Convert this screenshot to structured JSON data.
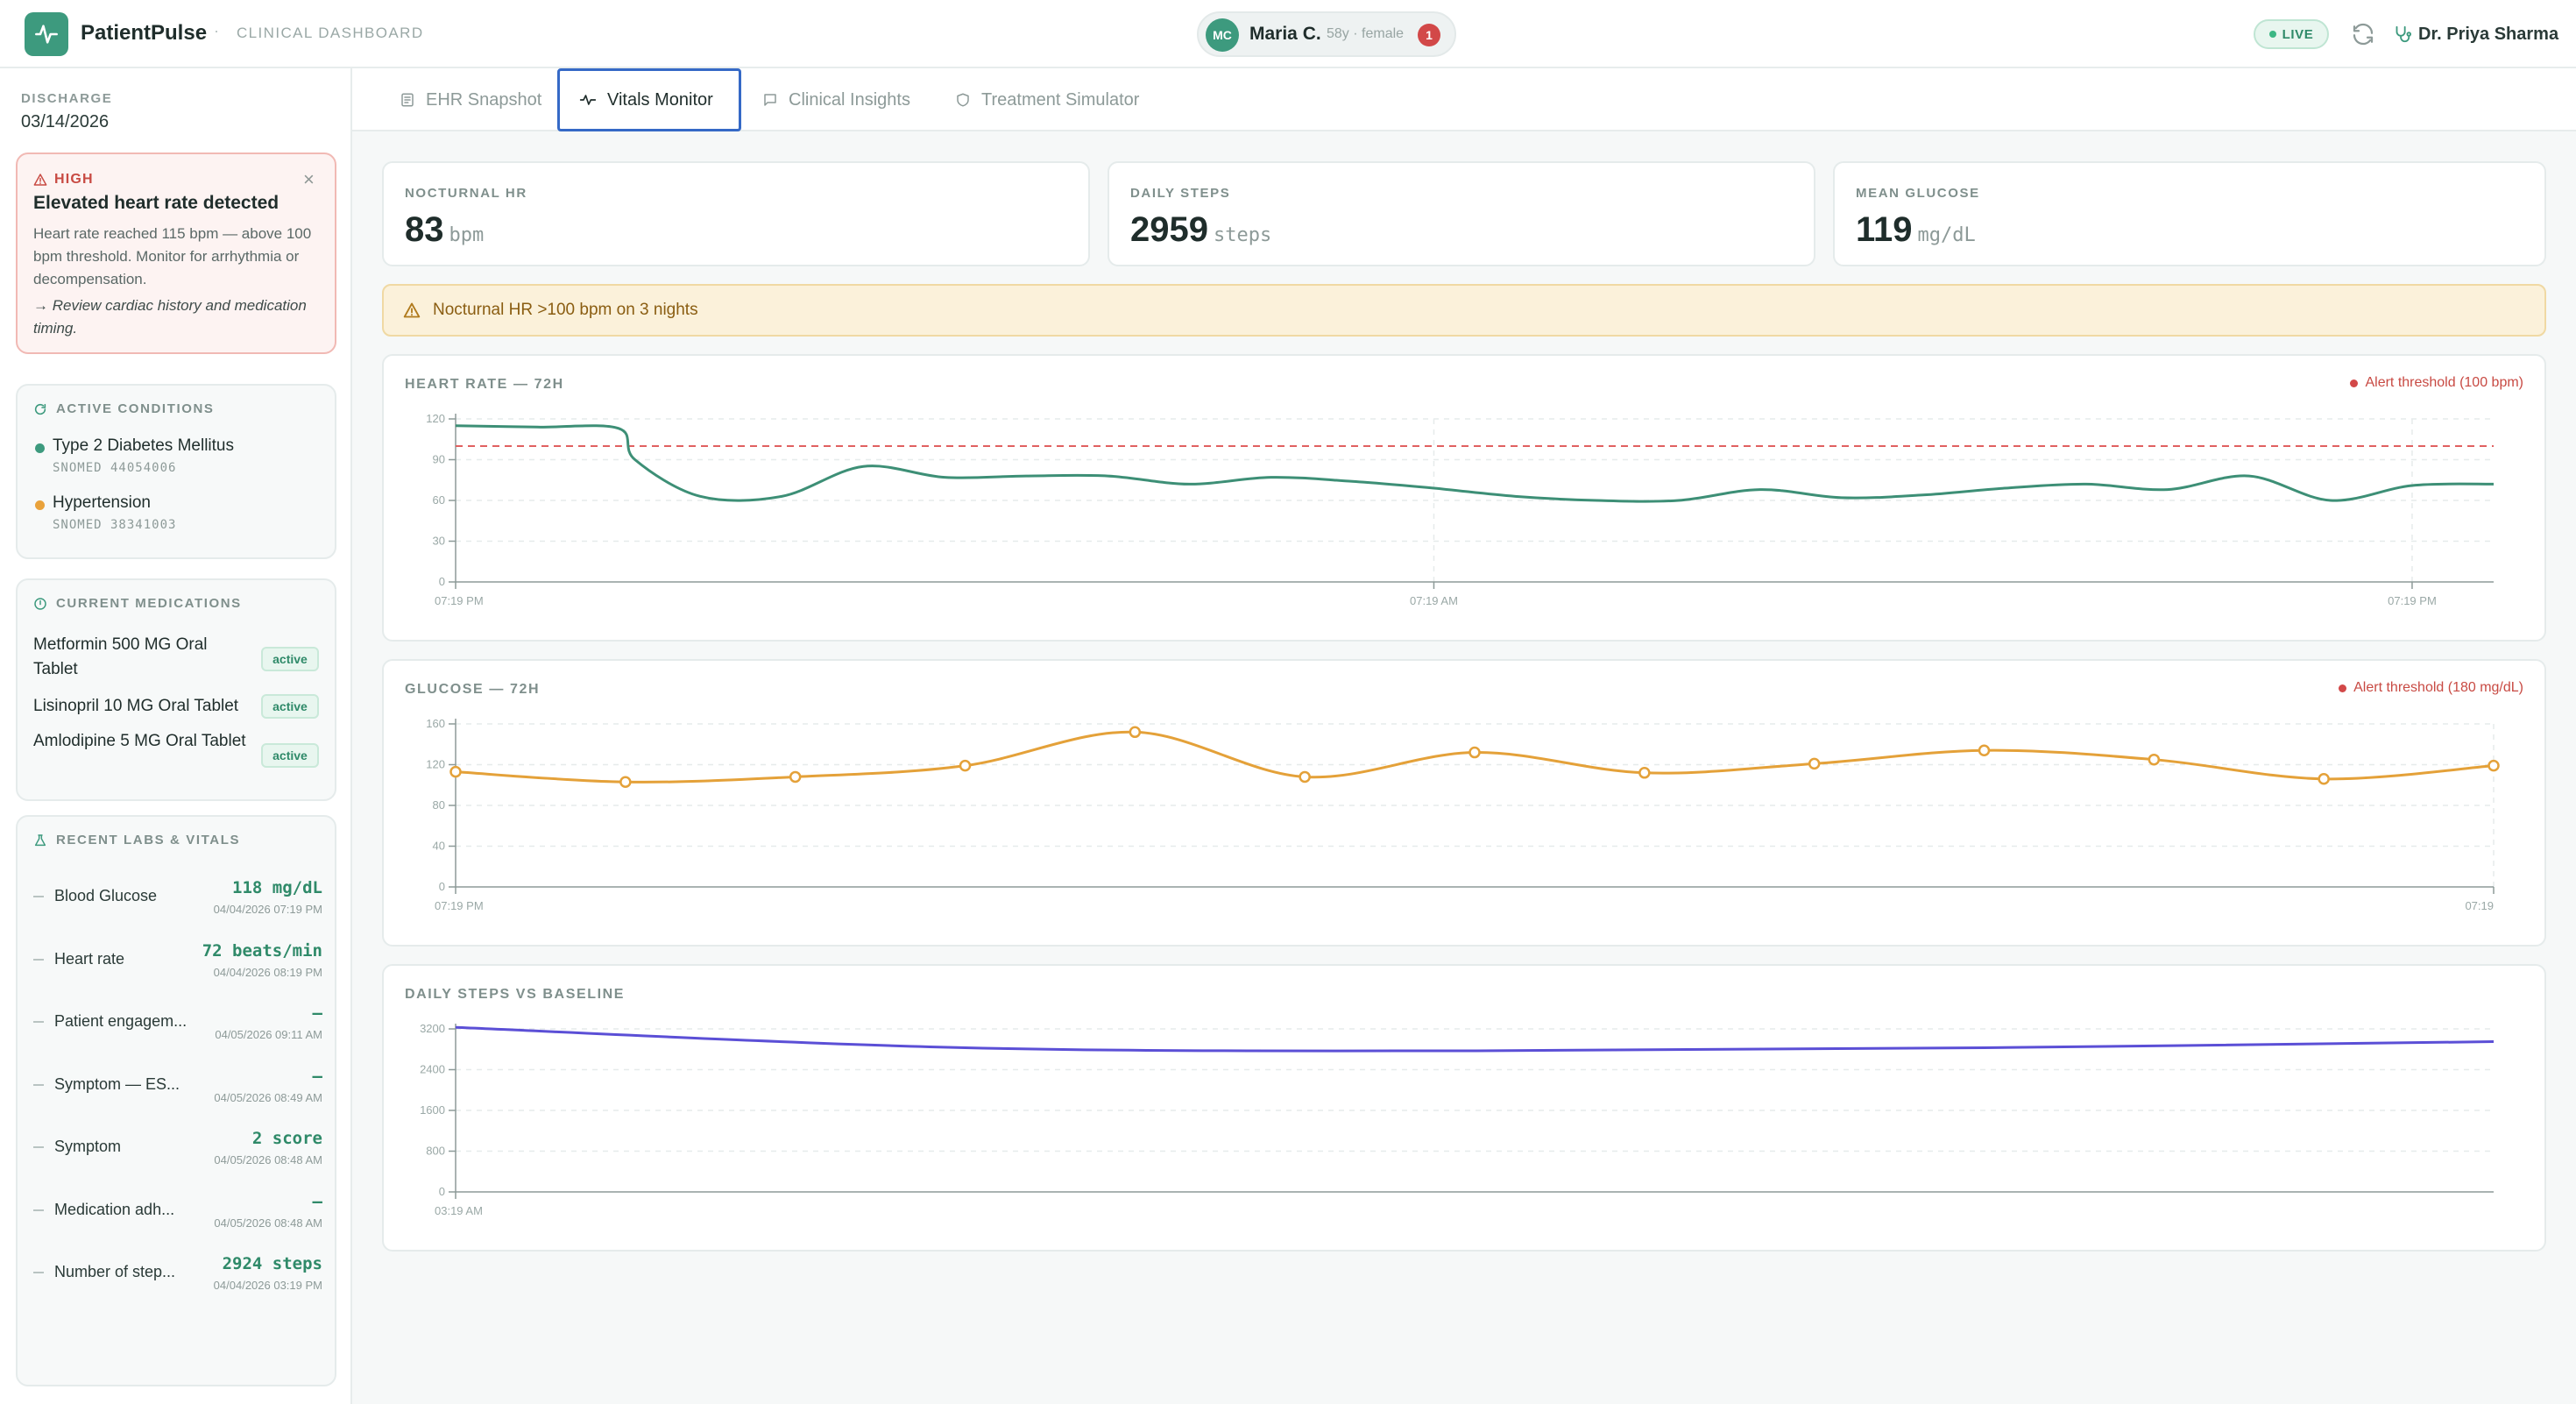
{
  "header": {
    "brand": "PatientPulse",
    "separator": "·",
    "subtitle": "CLINICAL DASHBOARD",
    "patient": {
      "initials": "MC",
      "name": "Maria C.",
      "meta": "58y · female",
      "alert_count": "1"
    },
    "live_label": "LIVE",
    "doctor": "Dr. Priya Sharma",
    "icons": {
      "logo": "activity-icon",
      "refresh": "refresh-icon",
      "doctor": "stethoscope-icon"
    }
  },
  "sidebar": {
    "discharge_label": "DISCHARGE",
    "discharge_date": "03/14/2026",
    "alert": {
      "severity": "HIGH",
      "title": "Elevated heart rate detected",
      "body": "Heart rate reached 115 bpm — above 100 bpm threshold. Monitor for arrhythmia or decompensation.",
      "action": "→ Review cardiac history and medication timing.",
      "close": "×"
    },
    "conditions": {
      "title": "ACTIVE CONDITIONS",
      "items": [
        {
          "name": "Type 2 Diabetes Mellitus",
          "code": "SNOMED 44054006",
          "color": "#3d9a7e"
        },
        {
          "name": "Hypertension",
          "code": "SNOMED 38341003",
          "color": "#e9a23b"
        }
      ]
    },
    "medications": {
      "title": "CURRENT MEDICATIONS",
      "items": [
        {
          "name": "Metformin 500 MG Oral Tablet",
          "status": "active"
        },
        {
          "name": "Lisinopril 10 MG Oral Tablet",
          "status": "active"
        },
        {
          "name": "Amlodipine 5 MG Oral Tablet",
          "status": "active"
        }
      ]
    },
    "labs": {
      "title": "RECENT LABS & VITALS",
      "items": [
        {
          "name": "Blood Glucose",
          "value": "118 mg/dL",
          "time": "04/04/2026 07:19 PM"
        },
        {
          "name": "Heart rate",
          "value": "72 beats/min",
          "time": "04/04/2026 08:19 PM"
        },
        {
          "name": "Patient engagem...",
          "value": "—",
          "time": "04/05/2026 09:11 AM"
        },
        {
          "name": "Symptom — ES...",
          "value": "—",
          "time": "04/05/2026 08:49 AM"
        },
        {
          "name": "Symptom",
          "value": "2 score",
          "time": "04/05/2026 08:48 AM"
        },
        {
          "name": "Medication adh...",
          "value": "—",
          "time": "04/05/2026 08:48 AM"
        },
        {
          "name": "Number of step...",
          "value": "2924 steps",
          "time": "04/04/2026 03:19 PM"
        }
      ]
    }
  },
  "tabs": [
    {
      "label": "EHR Snapshot",
      "icon": "document-icon",
      "active": false
    },
    {
      "label": "Vitals Monitor",
      "icon": "pulse-icon",
      "active": true
    },
    {
      "label": "Clinical Insights",
      "icon": "chat-icon",
      "active": false
    },
    {
      "label": "Treatment Simulator",
      "icon": "shield-icon",
      "active": false
    }
  ],
  "stats": [
    {
      "label": "NOCTURNAL HR",
      "value": "83",
      "unit": "bpm"
    },
    {
      "label": "DAILY STEPS",
      "value": "2959",
      "unit": "steps"
    },
    {
      "label": "MEAN GLUCOSE",
      "value": "119",
      "unit": "mg/dL"
    }
  ],
  "banner": {
    "text": "Nocturnal HR >100 bpm on 3 nights",
    "icon": "warning-icon"
  },
  "chart_data": [
    {
      "type": "line",
      "title": "HEART RATE — 72H",
      "legend": "Alert threshold (100 bpm)",
      "threshold": 100,
      "color": "#3d8f76",
      "ylim": [
        0,
        120
      ],
      "yticks": [
        0,
        30,
        60,
        90,
        120
      ],
      "xticks": [
        {
          "label": "07:19 PM",
          "x": 0
        },
        {
          "label": "07:19 AM",
          "x": 12
        },
        {
          "label": "07:19 PM",
          "x": 24
        }
      ],
      "xlim": [
        0,
        25
      ],
      "markers": false,
      "x": [
        0,
        1,
        2,
        2.2,
        3,
        4,
        5,
        6,
        7,
        8,
        9,
        10,
        11,
        12,
        13,
        14,
        15,
        16,
        17,
        18,
        19,
        20,
        21,
        22,
        23,
        24,
        25
      ],
      "values": [
        115,
        114,
        113,
        90,
        63,
        63,
        85,
        77,
        78,
        78,
        72,
        77,
        74,
        69,
        63,
        60,
        60,
        68,
        62,
        64,
        69,
        72,
        68,
        78,
        60,
        71,
        72
      ]
    },
    {
      "type": "line",
      "title": "GLUCOSE — 72H",
      "legend": "Alert threshold (180 mg/dL)",
      "threshold": 180,
      "color": "#e4a139",
      "ylim": [
        0,
        160
      ],
      "yticks": [
        0,
        40,
        80,
        120,
        160
      ],
      "xticks": [
        {
          "label": "07:19 PM",
          "x": 0
        },
        {
          "label": "07:19",
          "x": 12
        }
      ],
      "xlim": [
        0,
        12
      ],
      "markers": true,
      "x": [
        0,
        1,
        2,
        3,
        4,
        5,
        6,
        7,
        8,
        9,
        10,
        11,
        12
      ],
      "values": [
        113,
        103,
        108,
        119,
        152,
        108,
        132,
        112,
        121,
        134,
        125,
        106,
        119
      ]
    },
    {
      "type": "line",
      "title": "DAILY STEPS VS BASELINE",
      "legend": "",
      "color": "#5b4fd6",
      "ylim": [
        0,
        3200
      ],
      "yticks": [
        0,
        800,
        1600,
        2400,
        3200
      ],
      "xticks": [
        {
          "label": "03:19 AM",
          "x": 0
        }
      ],
      "xlim": [
        0,
        4
      ],
      "markers": false,
      "x": [
        0,
        1,
        2,
        3,
        4
      ],
      "values": [
        3230,
        2830,
        2770,
        2830,
        2950
      ]
    }
  ]
}
